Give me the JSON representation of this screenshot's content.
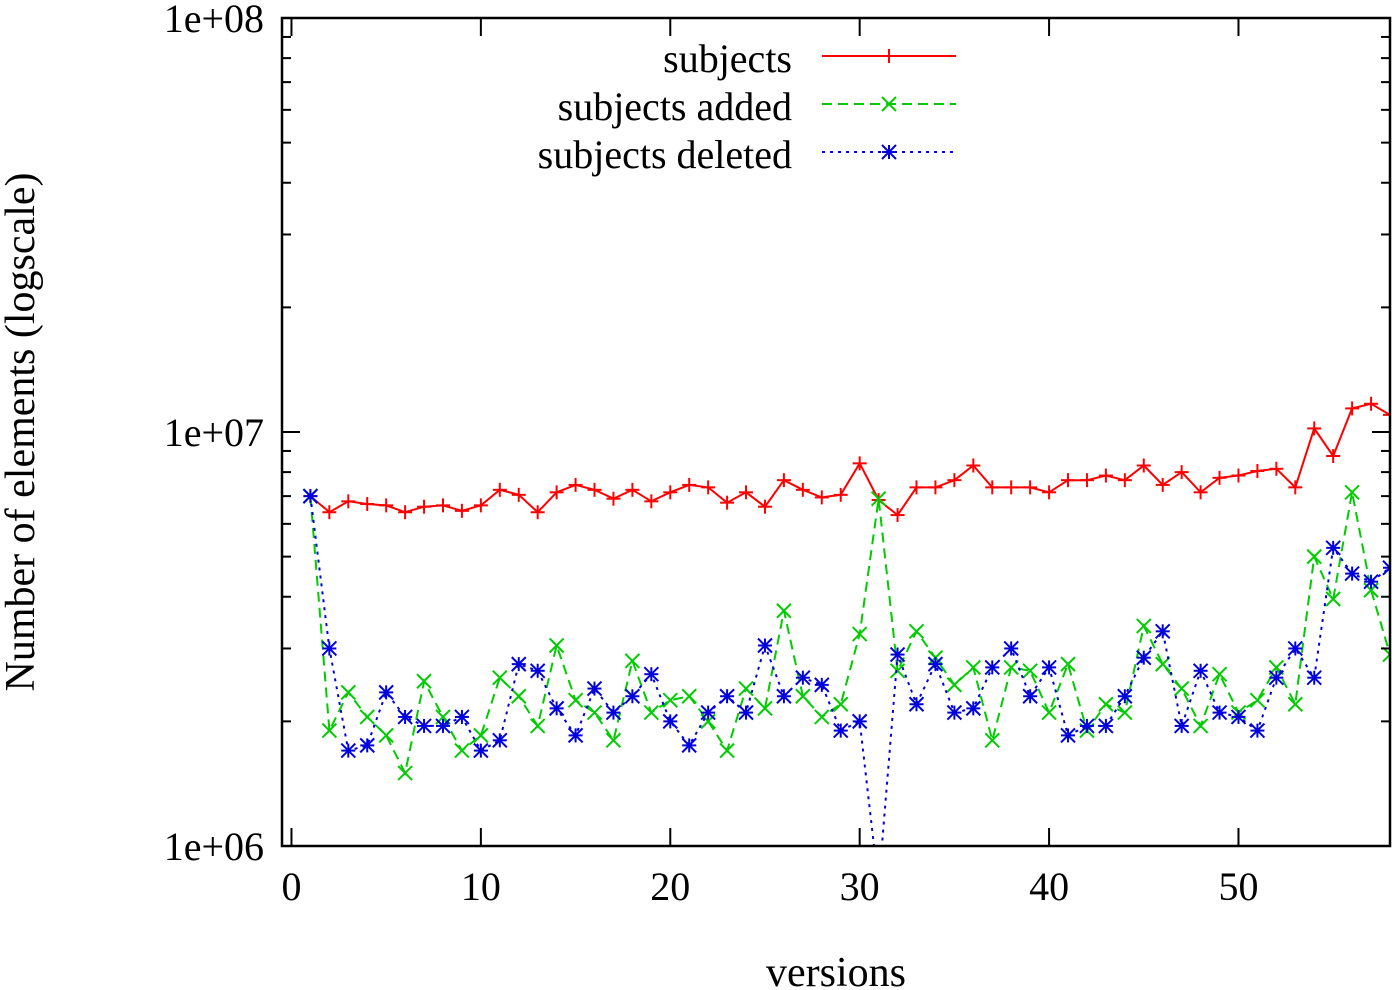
{
  "chart_data": {
    "type": "line",
    "xlabel": "versions",
    "ylabel": "Number of elements (logscale)",
    "y_scale": "log",
    "xlim": [
      -0.5,
      58
    ],
    "ylim": [
      1000000,
      100000000
    ],
    "x_ticks": [
      0,
      10,
      20,
      30,
      40,
      50
    ],
    "x_tick_labels": [
      "0",
      "10",
      "20",
      "30",
      "40",
      "50"
    ],
    "y_ticks": [
      1000000,
      10000000,
      100000000
    ],
    "y_tick_labels": [
      "1e+06",
      "1e+07",
      "1e+08"
    ],
    "grid": false,
    "legend_position": "top-center",
    "series": [
      {
        "name": "subjects",
        "color": "#ff0000",
        "dash": "solid",
        "marker": "plus",
        "x": [
          1,
          2,
          3,
          4,
          5,
          6,
          7,
          8,
          9,
          10,
          11,
          12,
          13,
          14,
          15,
          16,
          17,
          18,
          19,
          20,
          21,
          22,
          23,
          24,
          25,
          26,
          27,
          28,
          29,
          30,
          31,
          32,
          33,
          34,
          35,
          36,
          37,
          38,
          39,
          40,
          41,
          42,
          43,
          44,
          45,
          46,
          47,
          48,
          49,
          50,
          51,
          52,
          53,
          54,
          55,
          56,
          57,
          58
        ],
        "y": [
          7000000,
          6400000,
          6800000,
          6700000,
          6650000,
          6400000,
          6600000,
          6650000,
          6450000,
          6650000,
          7250000,
          7050000,
          6400000,
          7150000,
          7450000,
          7250000,
          6900000,
          7250000,
          6800000,
          7150000,
          7450000,
          7350000,
          6750000,
          7150000,
          6600000,
          7650000,
          7250000,
          6950000,
          7050000,
          8400000,
          6850000,
          6300000,
          7350000,
          7350000,
          7650000,
          8300000,
          7350000,
          7350000,
          7350000,
          7150000,
          7650000,
          7650000,
          7850000,
          7650000,
          8300000,
          7450000,
          8000000,
          7150000,
          7750000,
          7850000,
          8050000,
          8150000,
          7350000,
          10200000,
          8750000,
          11400000,
          11700000,
          11000000
        ]
      },
      {
        "name": "subjects added",
        "color": "#00cc00",
        "dash": "dashed",
        "marker": "x",
        "x": [
          1,
          2,
          3,
          4,
          5,
          6,
          7,
          8,
          9,
          10,
          11,
          12,
          13,
          14,
          15,
          16,
          17,
          18,
          19,
          20,
          21,
          22,
          23,
          24,
          25,
          26,
          27,
          28,
          29,
          30,
          31,
          32,
          33,
          34,
          35,
          36,
          37,
          38,
          39,
          40,
          41,
          42,
          43,
          44,
          45,
          46,
          47,
          48,
          49,
          50,
          51,
          52,
          53,
          54,
          55,
          56,
          57,
          58
        ],
        "y": [
          7000000,
          1900000,
          2350000,
          2050000,
          1850000,
          1500000,
          2500000,
          2050000,
          1700000,
          1850000,
          2550000,
          2300000,
          1950000,
          3050000,
          2250000,
          2100000,
          1800000,
          2800000,
          2100000,
          2250000,
          2300000,
          2000000,
          1700000,
          2400000,
          2150000,
          3700000,
          2300000,
          2050000,
          2200000,
          3250000,
          6900000,
          2650000,
          3300000,
          2850000,
          2450000,
          2700000,
          1800000,
          2700000,
          2650000,
          2100000,
          2750000,
          1900000,
          2200000,
          2100000,
          3400000,
          2750000,
          2400000,
          1950000,
          2600000,
          2100000,
          2250000,
          2700000,
          2200000,
          5000000,
          3950000,
          7150000,
          4150000,
          2900000
        ]
      },
      {
        "name": "subjects deleted",
        "color": "#0000dd",
        "dash": "dotted",
        "marker": "star",
        "x": [
          1,
          2,
          3,
          4,
          5,
          6,
          7,
          8,
          9,
          10,
          11,
          12,
          13,
          14,
          15,
          16,
          17,
          18,
          19,
          20,
          21,
          22,
          23,
          24,
          25,
          26,
          27,
          28,
          29,
          30,
          31,
          32,
          33,
          34,
          35,
          36,
          37,
          38,
          39,
          40,
          41,
          42,
          43,
          44,
          45,
          46,
          47,
          48,
          49,
          50,
          51,
          52,
          53,
          54,
          55,
          56,
          57,
          58
        ],
        "y": [
          7000000,
          3000000,
          1700000,
          1750000,
          2350000,
          2050000,
          1950000,
          1950000,
          2050000,
          1700000,
          1800000,
          2750000,
          2650000,
          2150000,
          1850000,
          2400000,
          2100000,
          2300000,
          2600000,
          2000000,
          1750000,
          2100000,
          2300000,
          2100000,
          3050000,
          2300000,
          2550000,
          2450000,
          1900000,
          2000000,
          null,
          2900000,
          2200000,
          2750000,
          2100000,
          2150000,
          2700000,
          3000000,
          2300000,
          2700000,
          1850000,
          1950000,
          1950000,
          2300000,
          2850000,
          3300000,
          1950000,
          2650000,
          2100000,
          2050000,
          1900000,
          2550000,
          3000000,
          2550000,
          5250000,
          4550000,
          4350000,
          4700000
        ]
      }
    ]
  }
}
